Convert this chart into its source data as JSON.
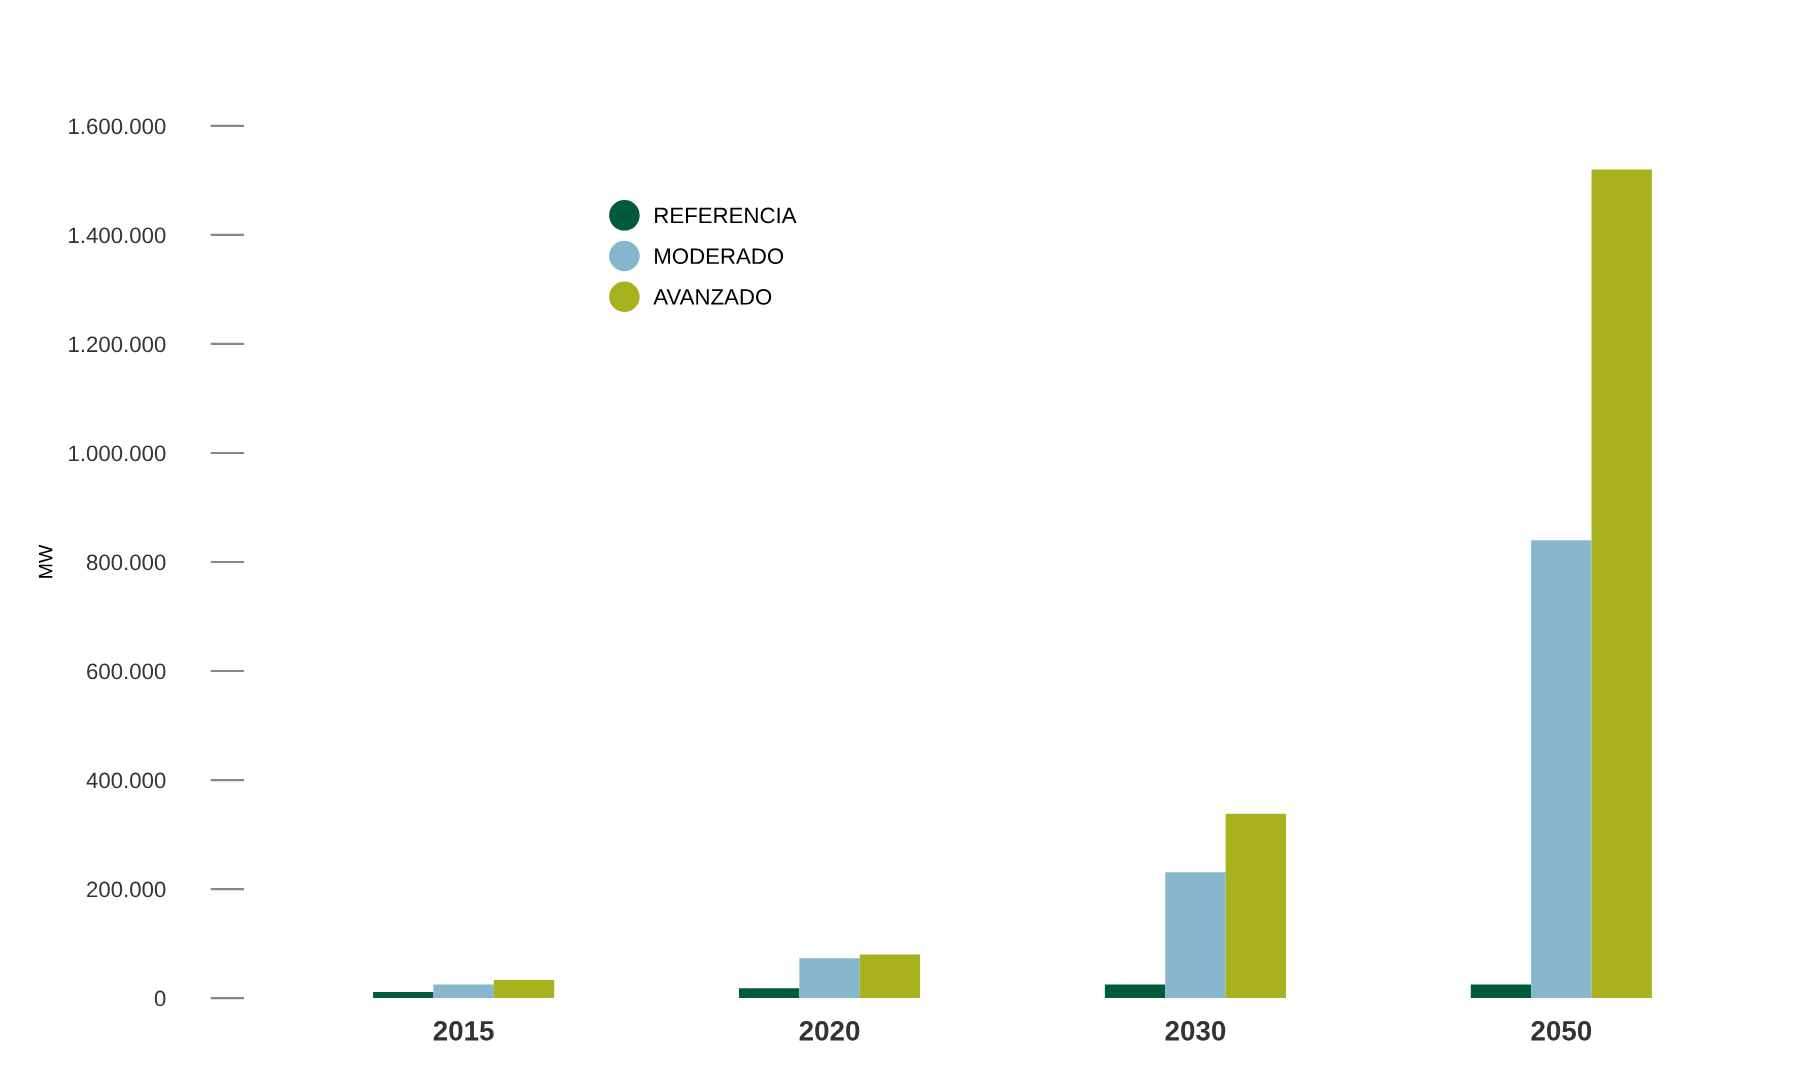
{
  "chart_data": {
    "type": "bar",
    "ylabel": "MW",
    "categories": [
      "2015",
      "2020",
      "2030",
      "2050"
    ],
    "series": [
      {
        "name": "REFERENCIA",
        "color": "#005a3c",
        "values": [
          11000,
          18000,
          25000,
          25000
        ]
      },
      {
        "name": "MODERADO",
        "color": "#87b7cd",
        "values": [
          25000,
          73000,
          231000,
          840000
        ]
      },
      {
        "name": "AVANZADO",
        "color": "#a8b21e",
        "values": [
          33000,
          80000,
          338000,
          1520000
        ]
      }
    ],
    "ylim": [
      0,
      1600000
    ],
    "yticks": [
      0,
      {
        "value": 200000,
        "label": "200.000"
      },
      {
        "value": 400000,
        "label": "400.000"
      },
      {
        "value": 600000,
        "label": "600.000"
      },
      {
        "value": 800000,
        "label": "800.000"
      },
      {
        "value": 1000000,
        "label": "1.000.000"
      },
      {
        "value": 1200000,
        "label": "1.200.000"
      },
      {
        "value": 1400000,
        "label": "1.400.000"
      },
      {
        "value": 1600000,
        "label": "1.600.000"
      }
    ],
    "grid": false,
    "legend": "top left",
    "marker": "circle"
  }
}
